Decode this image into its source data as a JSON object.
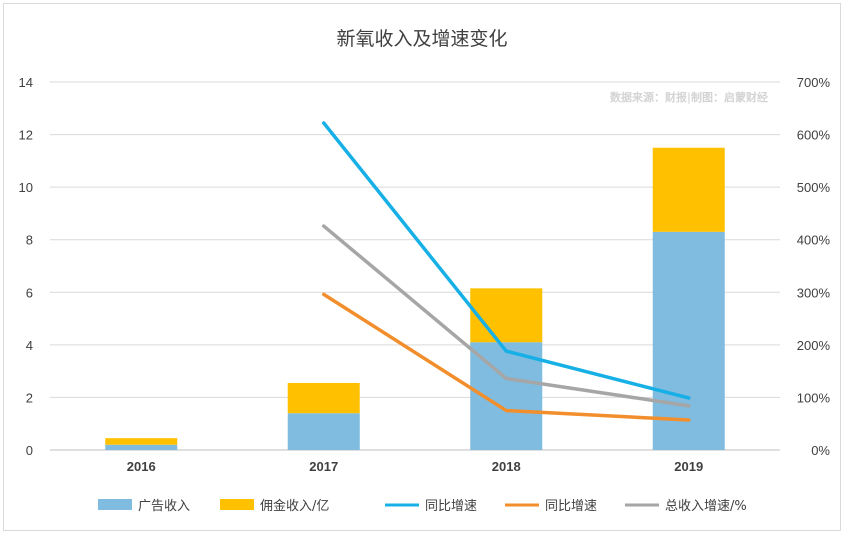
{
  "chart_data": {
    "type": "bar+line",
    "title": "新氧收入及增速变化",
    "source_note": "数据来源：财报|制图：启蒙财经",
    "categories": [
      "2016",
      "2017",
      "2018",
      "2019"
    ],
    "y_left": {
      "min": 0,
      "max": 14,
      "ticks": [
        "0",
        "2",
        "4",
        "6",
        "8",
        "10",
        "12",
        "14"
      ]
    },
    "y_right": {
      "min": 0,
      "max": 700,
      "ticks": [
        "0%",
        "100%",
        "200%",
        "300%",
        "400%",
        "500%",
        "600%",
        "700%"
      ]
    },
    "bar_series": [
      {
        "name": "广告收入",
        "color": "#7fbcdf",
        "values": [
          0.2,
          1.4,
          4.1,
          8.3
        ]
      },
      {
        "name": "佣金收入/亿",
        "color": "#ffc000",
        "values": [
          0.25,
          1.15,
          2.05,
          3.2
        ]
      }
    ],
    "line_series": [
      {
        "name": "同比增速",
        "color": "#17b0e6",
        "values": [
          null,
          622,
          188,
          99
        ]
      },
      {
        "name": "同比增速",
        "color": "#f28e2b",
        "values": [
          null,
          296,
          75,
          57
        ]
      },
      {
        "name": "总收入增速/%",
        "color": "#a6a6a6",
        "values": [
          null,
          426,
          136,
          84
        ]
      }
    ]
  }
}
